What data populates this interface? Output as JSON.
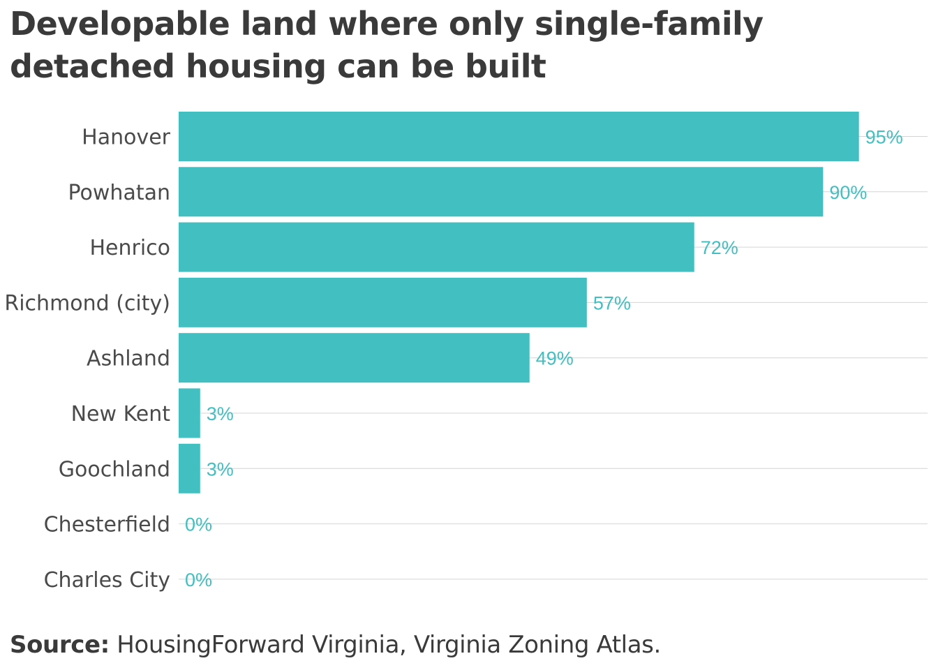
{
  "title": "Developable land where only single-family detached housing can be built",
  "source": {
    "label": "Source:",
    "text": "HousingForward Virginia, Virginia Zoning Atlas."
  },
  "colors": {
    "bar": "#41bfc1",
    "value_label": "#41bfc1",
    "category_label": "#4a4a4a",
    "gridline": "#d4d4d4",
    "text": "#3a3a3a"
  },
  "chart_data": {
    "type": "bar",
    "orientation": "horizontal",
    "categories": [
      "Hanover",
      "Powhatan",
      "Henrico",
      "Richmond (city)",
      "Ashland",
      "New Kent",
      "Goochland",
      "Chesterfield",
      "Charles City"
    ],
    "values": [
      95,
      90,
      72,
      57,
      49,
      3,
      3,
      0,
      0
    ],
    "value_labels": [
      "95%",
      "90%",
      "72%",
      "57%",
      "49%",
      "3%",
      "3%",
      "0%",
      "0%"
    ],
    "title": "Developable land where only single-family detached housing can be built",
    "xlabel": "",
    "ylabel": "",
    "xlim": [
      0,
      100
    ],
    "grid": true,
    "legend": "none"
  }
}
